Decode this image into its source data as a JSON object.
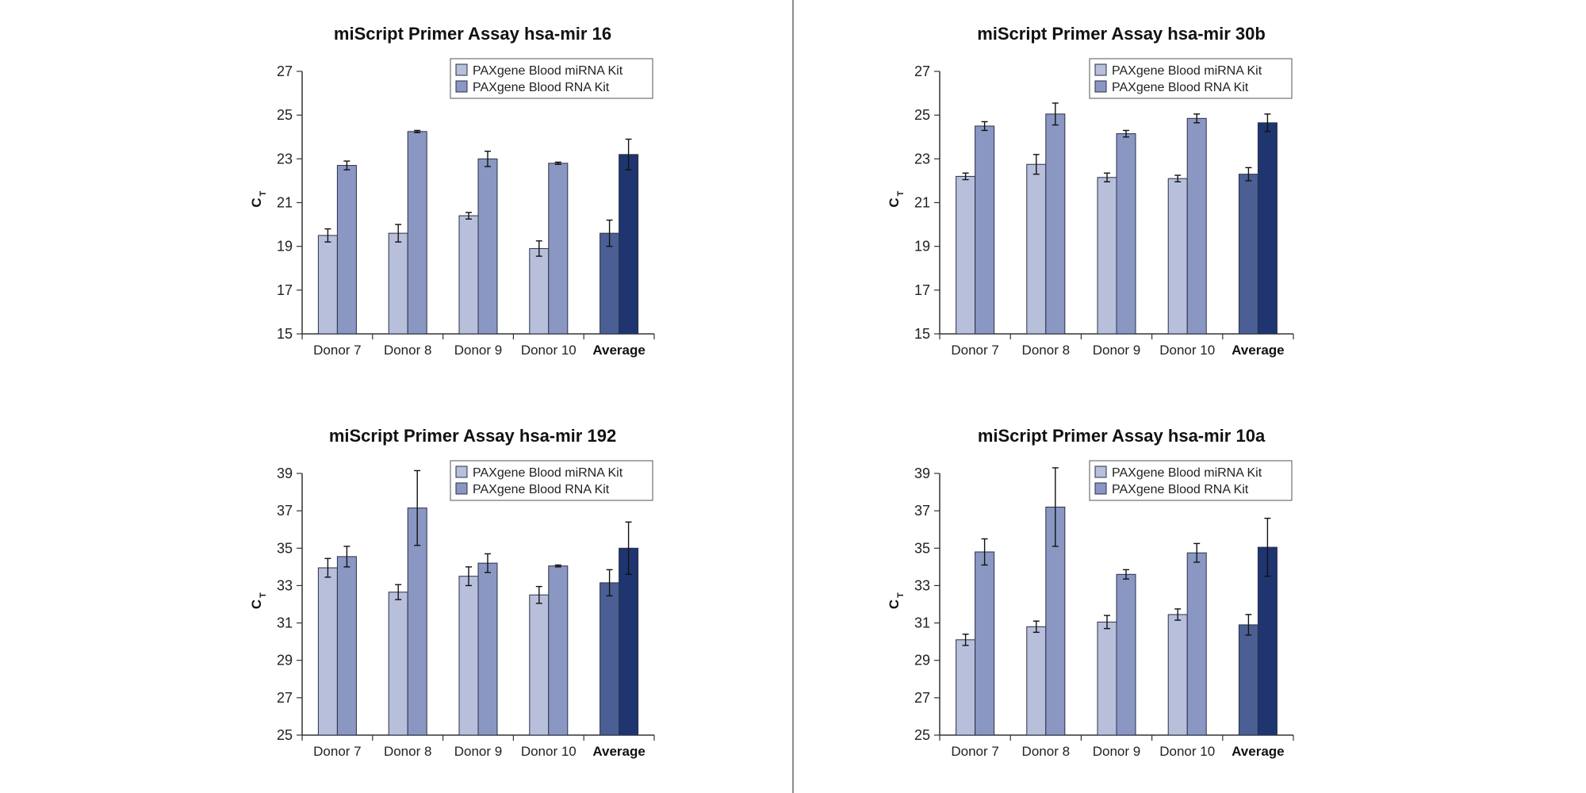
{
  "colors": {
    "mirna_donor": "#b7bfdb",
    "rna_donor": "#8a97c3",
    "mirna_average": "#4b5f95",
    "rna_average": "#1f3570",
    "divider": "#666666",
    "axis": "#333333"
  },
  "chart_data": [
    {
      "type": "bar",
      "title": "miScript Primer Assay hsa-mir 16",
      "ylabel": "C",
      "ylabel_sub": "T",
      "ylim": [
        15,
        27
      ],
      "yticks": [
        15,
        17,
        19,
        21,
        23,
        25,
        27
      ],
      "categories": [
        "Donor 7",
        "Donor 8",
        "Donor 9",
        "Donor 10",
        "Average"
      ],
      "legend": [
        "PAXgene Blood miRNA Kit",
        "PAXgene Blood RNA Kit"
      ],
      "legend_position": "top-right",
      "grid": false,
      "series": [
        {
          "name": "PAXgene Blood miRNA Kit",
          "values": [
            19.5,
            19.6,
            20.4,
            18.9,
            19.6
          ],
          "errors": [
            0.3,
            0.4,
            0.15,
            0.35,
            0.6
          ]
        },
        {
          "name": "PAXgene Blood RNA Kit",
          "values": [
            22.7,
            24.25,
            23.0,
            22.8,
            23.2
          ],
          "errors": [
            0.2,
            0.05,
            0.35,
            0.05,
            0.7
          ]
        }
      ]
    },
    {
      "type": "bar",
      "title": "miScript Primer Assay hsa-mir 30b",
      "ylabel": "C",
      "ylabel_sub": "T",
      "ylim": [
        15,
        27
      ],
      "yticks": [
        15,
        17,
        19,
        21,
        23,
        25,
        27
      ],
      "categories": [
        "Donor 7",
        "Donor 8",
        "Donor 9",
        "Donor 10",
        "Average"
      ],
      "legend": [
        "PAXgene Blood miRNA Kit",
        "PAXgene Blood RNA Kit"
      ],
      "legend_position": "top-right",
      "grid": false,
      "series": [
        {
          "name": "PAXgene Blood miRNA Kit",
          "values": [
            22.2,
            22.75,
            22.15,
            22.1,
            22.3
          ],
          "errors": [
            0.15,
            0.45,
            0.2,
            0.15,
            0.3
          ]
        },
        {
          "name": "PAXgene Blood RNA Kit",
          "values": [
            24.5,
            25.05,
            24.15,
            24.85,
            24.65
          ],
          "errors": [
            0.2,
            0.5,
            0.15,
            0.2,
            0.4
          ]
        }
      ]
    },
    {
      "type": "bar",
      "title": "miScript Primer Assay hsa-mir 192",
      "ylabel": "C",
      "ylabel_sub": "T",
      "ylim": [
        25,
        39
      ],
      "yticks": [
        25,
        27,
        29,
        31,
        33,
        35,
        37,
        39
      ],
      "categories": [
        "Donor 7",
        "Donor 8",
        "Donor 9",
        "Donor 10",
        "Average"
      ],
      "legend": [
        "PAXgene Blood miRNA Kit",
        "PAXgene Blood RNA Kit"
      ],
      "legend_position": "top-right",
      "grid": false,
      "series": [
        {
          "name": "PAXgene Blood miRNA Kit",
          "values": [
            33.95,
            32.65,
            33.5,
            32.5,
            33.15
          ],
          "errors": [
            0.5,
            0.4,
            0.5,
            0.45,
            0.7
          ]
        },
        {
          "name": "PAXgene Blood RNA Kit",
          "values": [
            34.55,
            37.15,
            34.2,
            34.05,
            35.0
          ],
          "errors": [
            0.55,
            2.0,
            0.5,
            0.05,
            1.4
          ]
        }
      ]
    },
    {
      "type": "bar",
      "title": "miScript Primer Assay hsa-mir 10a",
      "ylabel": "C",
      "ylabel_sub": "T",
      "ylim": [
        25,
        39
      ],
      "yticks": [
        25,
        27,
        29,
        31,
        33,
        35,
        37,
        39
      ],
      "categories": [
        "Donor 7",
        "Donor 8",
        "Donor 9",
        "Donor 10",
        "Average"
      ],
      "legend": [
        "PAXgene Blood miRNA Kit",
        "PAXgene Blood RNA Kit"
      ],
      "legend_position": "top-right",
      "grid": false,
      "series": [
        {
          "name": "PAXgene Blood miRNA Kit",
          "values": [
            30.1,
            30.8,
            31.05,
            31.45,
            30.9
          ],
          "errors": [
            0.3,
            0.3,
            0.35,
            0.3,
            0.55
          ]
        },
        {
          "name": "PAXgene Blood RNA Kit",
          "values": [
            34.8,
            37.2,
            33.6,
            34.75,
            35.05
          ],
          "errors": [
            0.7,
            2.1,
            0.25,
            0.5,
            1.55
          ]
        }
      ]
    }
  ]
}
